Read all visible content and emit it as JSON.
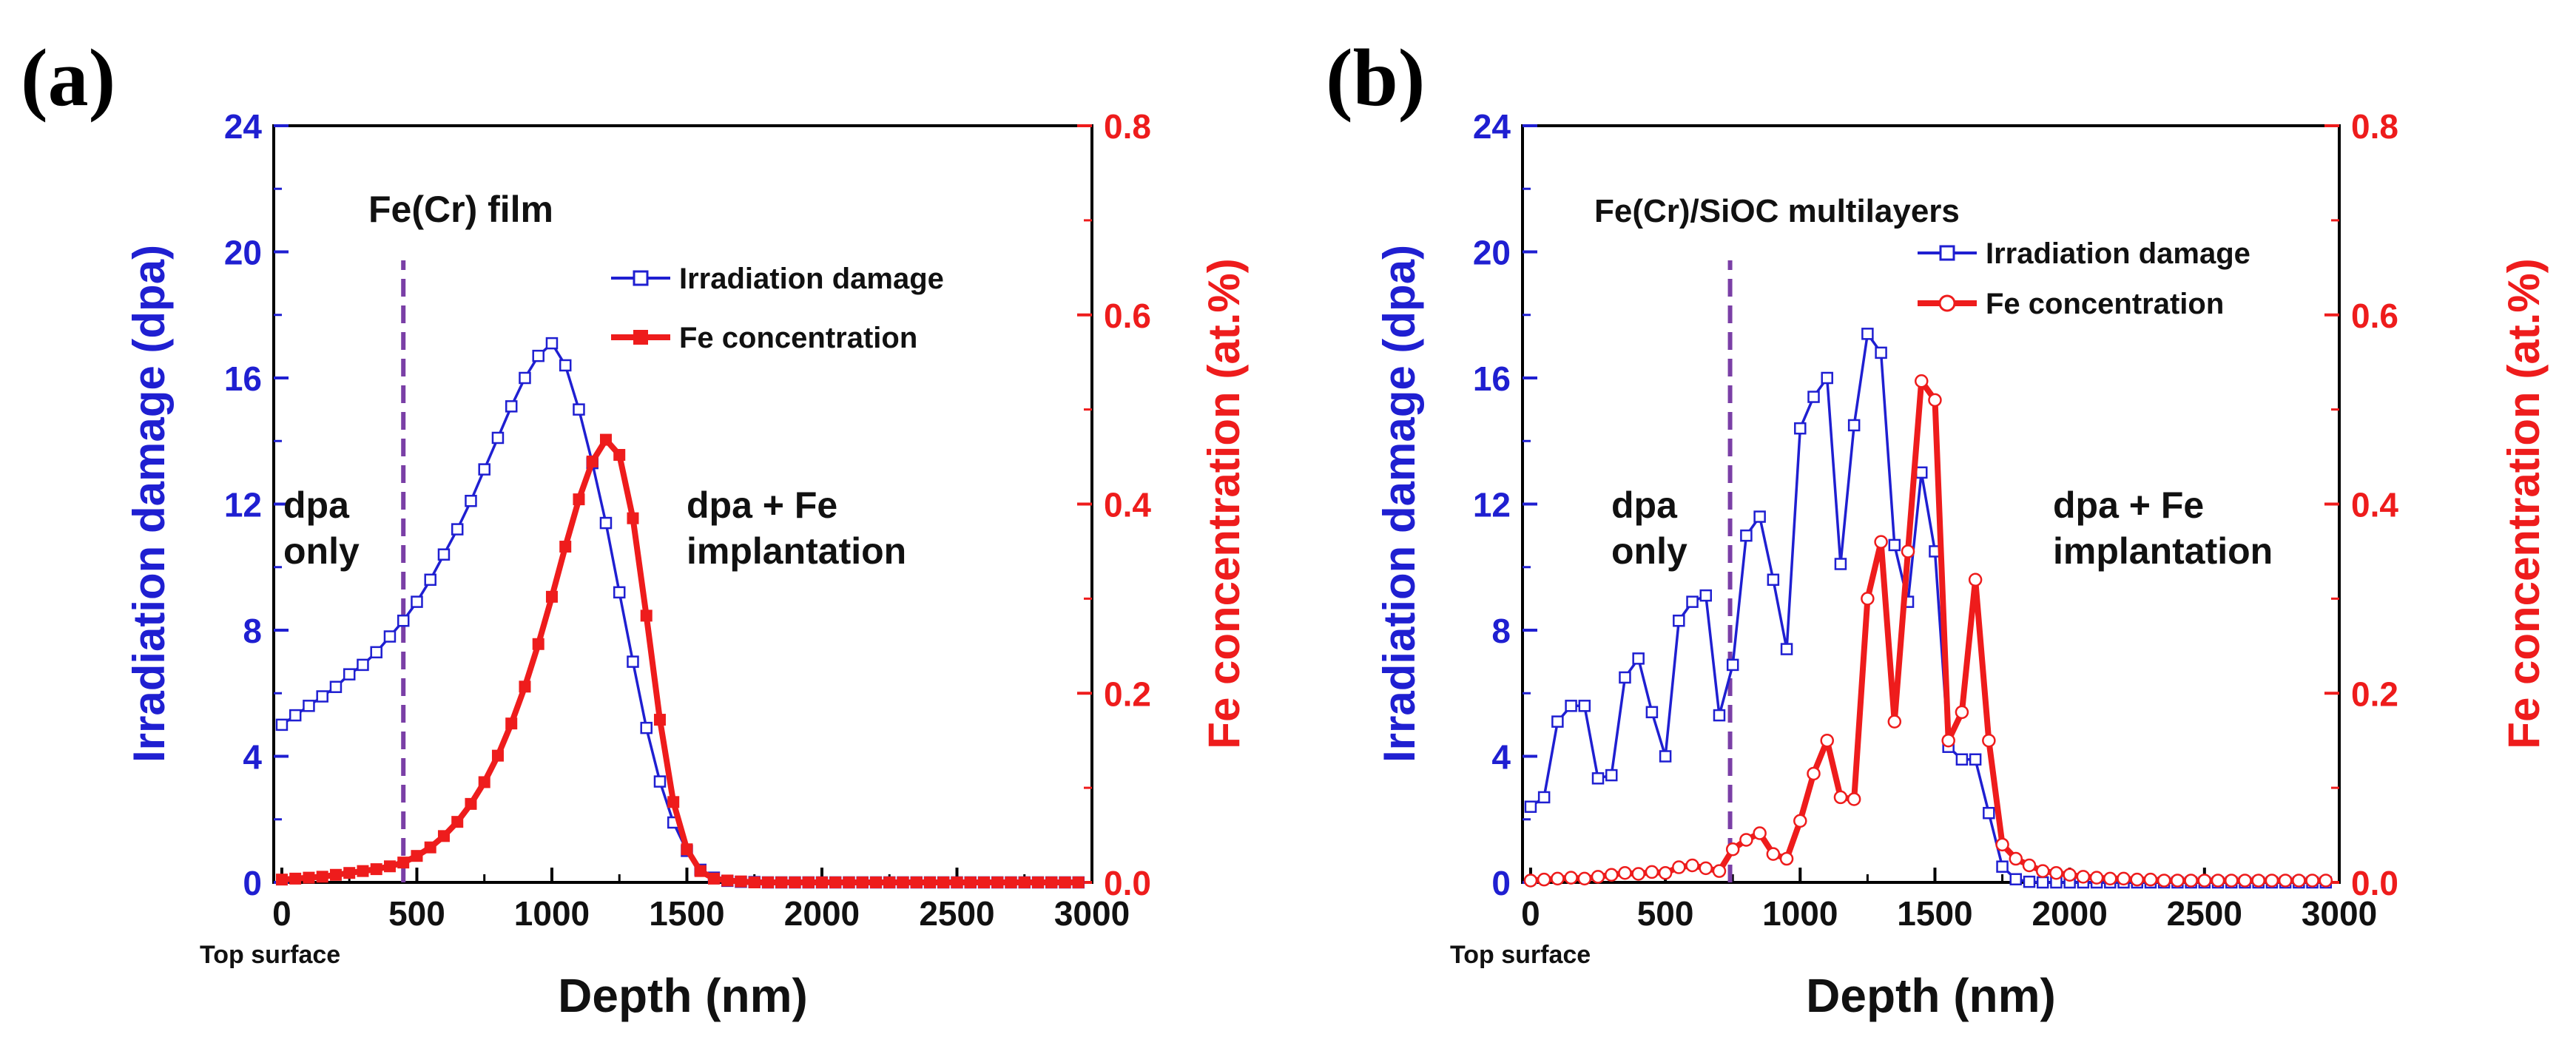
{
  "chart_data": [
    {
      "type": "line",
      "panel_label": "(a)",
      "title": "Fe(Cr) film",
      "xlabel": "Depth (nm)",
      "ylabel": "Irradiation damage (dpa)",
      "y2label": "Fe concentration (at.%)",
      "xlim": [
        -30,
        3000
      ],
      "ylim": [
        0,
        24
      ],
      "y2lim": [
        0,
        0.8
      ],
      "x_ticks": [
        0,
        500,
        1000,
        1500,
        2000,
        2500,
        3000
      ],
      "x_tick_labels": [
        "0",
        "500",
        "1000",
        "1500",
        "2000",
        "2500",
        "3000"
      ],
      "y_ticks": [
        0,
        4,
        8,
        12,
        16,
        20,
        24
      ],
      "y_tick_labels": [
        "0",
        "4",
        "8",
        "12",
        "16",
        "20",
        "24"
      ],
      "y2_ticks": [
        0,
        0.2,
        0.4,
        0.6,
        0.8
      ],
      "y2_tick_labels": [
        "0.0",
        "0.2",
        "0.4",
        "0.6",
        "0.8"
      ],
      "vline_x": 450,
      "annotations": {
        "surface": "Top surface",
        "left_line1": "dpa",
        "left_line2": "only",
        "right_line1": "dpa + Fe",
        "right_line2": "implantation"
      },
      "series": [
        {
          "name": "Irradiation damage",
          "axis": "left",
          "color": "#1f1fd1",
          "marker": "square-open",
          "x": [
            0,
            50,
            100,
            150,
            200,
            250,
            300,
            350,
            400,
            450,
            500,
            550,
            600,
            650,
            700,
            750,
            800,
            850,
            900,
            950,
            1000,
            1050,
            1100,
            1150,
            1200,
            1250,
            1300,
            1350,
            1400,
            1450,
            1500,
            1550,
            1600,
            1650,
            1700,
            1750,
            1800,
            1850,
            1900,
            1950,
            2000,
            2050,
            2100,
            2150,
            2200,
            2250,
            2300,
            2350,
            2400,
            2450,
            2500,
            2550,
            2600,
            2650,
            2700,
            2750,
            2800,
            2850,
            2900,
            2950
          ],
          "values": [
            5.0,
            5.3,
            5.6,
            5.9,
            6.2,
            6.6,
            6.9,
            7.3,
            7.8,
            8.3,
            8.9,
            9.6,
            10.4,
            11.2,
            12.1,
            13.1,
            14.1,
            15.1,
            16.0,
            16.7,
            17.1,
            16.4,
            15.0,
            13.3,
            11.4,
            9.2,
            7.0,
            4.9,
            3.2,
            1.9,
            1.0,
            0.4,
            0.15,
            0.05,
            0.02,
            0.01,
            0.0,
            0.0,
            0.0,
            0.0,
            0.0,
            0.0,
            0.0,
            0.0,
            0.0,
            0.0,
            0.0,
            0.0,
            0.0,
            0.0,
            0.0,
            0.0,
            0.0,
            0.0,
            0.0,
            0.0,
            0.0,
            0.0,
            0.0,
            0.0
          ]
        },
        {
          "name": "Fe concentration",
          "axis": "right",
          "color": "#ee1c1c",
          "marker": "square-filled",
          "x": [
            0,
            50,
            100,
            150,
            200,
            250,
            300,
            350,
            400,
            450,
            500,
            550,
            600,
            650,
            700,
            750,
            800,
            850,
            900,
            950,
            1000,
            1050,
            1100,
            1150,
            1200,
            1250,
            1300,
            1350,
            1400,
            1450,
            1500,
            1550,
            1600,
            1650,
            1700,
            1750,
            1800,
            1850,
            1900,
            1950,
            2000,
            2050,
            2100,
            2150,
            2200,
            2250,
            2300,
            2350,
            2400,
            2450,
            2500,
            2550,
            2600,
            2650,
            2700,
            2750,
            2800,
            2850,
            2900,
            2950
          ],
          "values": [
            0.003,
            0.004,
            0.005,
            0.006,
            0.008,
            0.01,
            0.012,
            0.014,
            0.017,
            0.021,
            0.028,
            0.037,
            0.049,
            0.064,
            0.083,
            0.106,
            0.134,
            0.168,
            0.207,
            0.252,
            0.302,
            0.355,
            0.405,
            0.445,
            0.468,
            0.452,
            0.385,
            0.282,
            0.172,
            0.085,
            0.035,
            0.012,
            0.004,
            0.002,
            0.001,
            0.0,
            0.0,
            0.0,
            0.0,
            0.0,
            0.0,
            0.0,
            0.0,
            0.0,
            0.0,
            0.0,
            0.0,
            0.0,
            0.0,
            0.0,
            0.0,
            0.0,
            0.0,
            0.0,
            0.0,
            0.0,
            0.0,
            0.0,
            0.0,
            0.0
          ]
        }
      ]
    },
    {
      "type": "line",
      "panel_label": "(b)",
      "title": "Fe(Cr)/SiOC multilayers",
      "xlabel": "Depth (nm)",
      "ylabel": "Irradiation damage (dpa)",
      "y2label": "Fe concentration (at.%)",
      "xlim": [
        -30,
        3000
      ],
      "ylim": [
        0,
        24
      ],
      "y2lim": [
        0,
        0.8
      ],
      "x_ticks": [
        0,
        500,
        1000,
        1500,
        2000,
        2500,
        3000
      ],
      "x_tick_labels": [
        "0",
        "500",
        "1000",
        "1500",
        "2000",
        "2500",
        "3000"
      ],
      "y_ticks": [
        0,
        4,
        8,
        12,
        16,
        20,
        24
      ],
      "y_tick_labels": [
        "0",
        "4",
        "8",
        "12",
        "16",
        "20",
        "24"
      ],
      "y2_ticks": [
        0,
        0.2,
        0.4,
        0.6,
        0.8
      ],
      "y2_tick_labels": [
        "0.0",
        "0.2",
        "0.4",
        "0.6",
        "0.8"
      ],
      "vline_x": 740,
      "annotations": {
        "surface": "Top surface",
        "left_line1": "dpa",
        "left_line2": "only",
        "right_line1": "dpa + Fe",
        "right_line2": "implantation"
      },
      "series": [
        {
          "name": "Irradiation damage",
          "axis": "left",
          "color": "#1f1fd1",
          "marker": "square-open",
          "x": [
            0,
            50,
            100,
            150,
            200,
            250,
            300,
            350,
            400,
            450,
            500,
            550,
            600,
            650,
            700,
            750,
            800,
            850,
            900,
            950,
            1000,
            1050,
            1100,
            1150,
            1200,
            1250,
            1300,
            1350,
            1400,
            1450,
            1500,
            1550,
            1600,
            1650,
            1700,
            1750,
            1800,
            1850,
            1900,
            1950,
            2000,
            2050,
            2100,
            2150,
            2200,
            2250,
            2300,
            2350,
            2400,
            2450,
            2500,
            2550,
            2600,
            2650,
            2700,
            2750,
            2800,
            2850,
            2900,
            2950
          ],
          "values": [
            2.4,
            2.7,
            5.1,
            5.6,
            5.6,
            3.3,
            3.4,
            6.5,
            7.1,
            5.4,
            4.0,
            8.3,
            8.9,
            9.1,
            5.3,
            6.9,
            11.0,
            11.6,
            9.6,
            7.4,
            14.4,
            15.4,
            16.0,
            10.1,
            14.5,
            17.4,
            16.8,
            10.7,
            8.9,
            13.0,
            10.5,
            4.3,
            3.9,
            3.9,
            2.2,
            0.5,
            0.1,
            0.02,
            0.0,
            0.0,
            0.0,
            0.0,
            0.0,
            0.0,
            0.0,
            0.0,
            0.0,
            0.0,
            0.0,
            0.0,
            0.0,
            0.0,
            0.0,
            0.0,
            0.0,
            0.0,
            0.0,
            0.0,
            0.0,
            0.0
          ]
        },
        {
          "name": "Fe concentration",
          "axis": "right",
          "color": "#ee1c1c",
          "marker": "circle-open",
          "x": [
            0,
            50,
            100,
            150,
            200,
            250,
            300,
            350,
            400,
            450,
            500,
            550,
            600,
            650,
            700,
            750,
            800,
            850,
            900,
            950,
            1000,
            1050,
            1100,
            1150,
            1200,
            1250,
            1300,
            1350,
            1400,
            1450,
            1500,
            1550,
            1600,
            1650,
            1700,
            1750,
            1800,
            1850,
            1900,
            1950,
            2000,
            2050,
            2100,
            2150,
            2200,
            2250,
            2300,
            2350,
            2400,
            2450,
            2500,
            2550,
            2600,
            2650,
            2700,
            2750,
            2800,
            2850,
            2900,
            2950
          ],
          "values": [
            0.002,
            0.003,
            0.004,
            0.005,
            0.004,
            0.006,
            0.008,
            0.01,
            0.009,
            0.011,
            0.01,
            0.016,
            0.018,
            0.015,
            0.012,
            0.035,
            0.045,
            0.052,
            0.03,
            0.025,
            0.065,
            0.115,
            0.15,
            0.09,
            0.088,
            0.3,
            0.36,
            0.17,
            0.35,
            0.53,
            0.51,
            0.15,
            0.18,
            0.32,
            0.15,
            0.04,
            0.025,
            0.018,
            0.012,
            0.01,
            0.008,
            0.006,
            0.005,
            0.004,
            0.004,
            0.003,
            0.003,
            0.002,
            0.002,
            0.002,
            0.002,
            0.002,
            0.002,
            0.002,
            0.002,
            0.002,
            0.002,
            0.002,
            0.002,
            0.002
          ]
        }
      ]
    }
  ]
}
